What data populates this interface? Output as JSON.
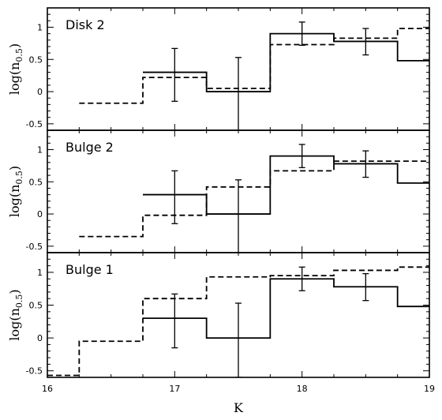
{
  "chart_data": {
    "type": "line",
    "xlabel": "K",
    "ylabel_main": "log(n",
    "ylabel_sub": "0.5",
    "ylabel_close": ")",
    "xlim": [
      16,
      19
    ],
    "xticks": [
      16,
      17,
      18,
      19
    ],
    "ylim": [
      -0.6,
      1.3
    ],
    "yticks": [
      -0.5,
      0,
      0.5,
      1
    ],
    "panels": [
      {
        "label": "Disk 2",
        "solid_steps": [
          {
            "x0": 16.75,
            "x1": 17.25,
            "y": 0.3
          },
          {
            "x0": 17.25,
            "x1": 17.75,
            "y": 0.0
          },
          {
            "x0": 17.75,
            "x1": 18.25,
            "y": 0.9
          },
          {
            "x0": 18.25,
            "x1": 18.75,
            "y": 0.78
          },
          {
            "x0": 18.75,
            "x1": 19.0,
            "y": 0.48
          }
        ],
        "dashed_steps": [
          {
            "x0": 16.25,
            "x1": 16.75,
            "y": -0.18
          },
          {
            "x0": 16.75,
            "x1": 17.25,
            "y": 0.22
          },
          {
            "x0": 17.25,
            "x1": 17.75,
            "y": 0.05
          },
          {
            "x0": 17.75,
            "x1": 18.25,
            "y": 0.73
          },
          {
            "x0": 18.25,
            "x1": 18.75,
            "y": 0.83
          },
          {
            "x0": 18.75,
            "x1": 19.0,
            "y": 0.98
          }
        ],
        "errorbars": [
          {
            "x": 17.0,
            "y": 0.3,
            "lo": -0.15,
            "hi": 0.67
          },
          {
            "x": 17.5,
            "y": 0.0,
            "lo": -0.6,
            "hi": 0.53
          },
          {
            "x": 18.0,
            "y": 0.9,
            "lo": 0.72,
            "hi": 1.08
          },
          {
            "x": 18.5,
            "y": 0.78,
            "lo": 0.57,
            "hi": 0.98
          }
        ]
      },
      {
        "label": "Bulge 2",
        "solid_steps": [
          {
            "x0": 16.75,
            "x1": 17.25,
            "y": 0.3
          },
          {
            "x0": 17.25,
            "x1": 17.75,
            "y": 0.0
          },
          {
            "x0": 17.75,
            "x1": 18.25,
            "y": 0.9
          },
          {
            "x0": 18.25,
            "x1": 18.75,
            "y": 0.78
          },
          {
            "x0": 18.75,
            "x1": 19.0,
            "y": 0.48
          }
        ],
        "dashed_steps": [
          {
            "x0": 16.25,
            "x1": 16.75,
            "y": -0.35
          },
          {
            "x0": 16.75,
            "x1": 17.25,
            "y": -0.02
          },
          {
            "x0": 17.25,
            "x1": 17.75,
            "y": 0.42
          },
          {
            "x0": 17.75,
            "x1": 18.25,
            "y": 0.67
          },
          {
            "x0": 18.25,
            "x1": 18.75,
            "y": 0.82
          },
          {
            "x0": 18.75,
            "x1": 19.0,
            "y": 0.82
          }
        ],
        "errorbars": [
          {
            "x": 17.0,
            "y": 0.3,
            "lo": -0.15,
            "hi": 0.67
          },
          {
            "x": 17.5,
            "y": 0.0,
            "lo": -0.6,
            "hi": 0.53
          },
          {
            "x": 18.0,
            "y": 0.9,
            "lo": 0.72,
            "hi": 1.08
          },
          {
            "x": 18.5,
            "y": 0.78,
            "lo": 0.57,
            "hi": 0.98
          }
        ]
      },
      {
        "label": "Bulge 1",
        "solid_steps": [
          {
            "x0": 16.75,
            "x1": 17.25,
            "y": 0.3
          },
          {
            "x0": 17.25,
            "x1": 17.75,
            "y": 0.0
          },
          {
            "x0": 17.75,
            "x1": 18.25,
            "y": 0.9
          },
          {
            "x0": 18.25,
            "x1": 18.75,
            "y": 0.78
          },
          {
            "x0": 18.75,
            "x1": 19.0,
            "y": 0.48
          }
        ],
        "dashed_steps": [
          {
            "x0": 16.0,
            "x1": 16.25,
            "y": -0.57
          },
          {
            "x0": 16.25,
            "x1": 16.75,
            "y": -0.05
          },
          {
            "x0": 16.75,
            "x1": 17.25,
            "y": 0.6
          },
          {
            "x0": 17.25,
            "x1": 17.75,
            "y": 0.93
          },
          {
            "x0": 17.75,
            "x1": 18.25,
            "y": 0.95
          },
          {
            "x0": 18.25,
            "x1": 18.75,
            "y": 1.03
          },
          {
            "x0": 18.75,
            "x1": 19.0,
            "y": 1.08
          }
        ],
        "errorbars": [
          {
            "x": 17.0,
            "y": 0.3,
            "lo": -0.15,
            "hi": 0.67
          },
          {
            "x": 17.5,
            "y": 0.0,
            "lo": -0.6,
            "hi": 0.53
          },
          {
            "x": 18.0,
            "y": 0.9,
            "lo": 0.72,
            "hi": 1.08
          },
          {
            "x": 18.5,
            "y": 0.78,
            "lo": 0.57,
            "hi": 0.98
          }
        ]
      }
    ]
  }
}
